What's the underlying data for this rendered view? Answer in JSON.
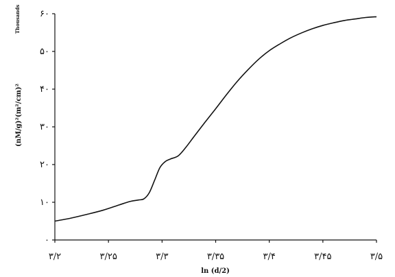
{
  "chart_data": {
    "type": "line",
    "title": "",
    "xlabel": "ln (d/2)",
    "ylabel": "(nM/g)²(m²/cm)²",
    "scale_note": "Thousands",
    "xlim": [
      3.2,
      3.5
    ],
    "ylim": [
      0,
      60
    ],
    "x_ticks": [
      3.2,
      3.25,
      3.3,
      3.35,
      3.4,
      3.45,
      3.5
    ],
    "x_tick_labels": [
      "۳/۲",
      "۳/۲۵",
      "۳/۳",
      "۳/۳۵",
      "۳/۴",
      "۳/۴۵",
      "۳/۵"
    ],
    "y_ticks": [
      0,
      10,
      20,
      30,
      40,
      50,
      60
    ],
    "y_tick_labels": [
      "۰",
      "۱۰",
      "۲۰",
      "۳۰",
      "۴۰",
      "۵۰",
      "۶۰"
    ],
    "grid": false,
    "legend": "none",
    "series": [
      {
        "color": "#111111",
        "x": [
          3.2,
          3.215,
          3.23,
          3.245,
          3.26,
          3.27,
          3.278,
          3.283,
          3.288,
          3.293,
          3.298,
          3.303,
          3.308,
          3.315,
          3.322,
          3.33,
          3.34,
          3.35,
          3.36,
          3.37,
          3.38,
          3.39,
          3.4,
          3.41,
          3.42,
          3.43,
          3.44,
          3.45,
          3.46,
          3.47,
          3.48,
          3.49,
          3.5
        ],
        "y": [
          5.0,
          5.8,
          6.8,
          7.9,
          9.3,
          10.2,
          10.6,
          10.9,
          12.5,
          15.8,
          19.2,
          20.8,
          21.5,
          22.3,
          24.5,
          27.5,
          31.2,
          34.8,
          38.5,
          42.0,
          45.1,
          47.9,
          50.2,
          52.0,
          53.6,
          54.9,
          56.0,
          56.9,
          57.6,
          58.2,
          58.6,
          59.0,
          59.2
        ]
      }
    ]
  }
}
